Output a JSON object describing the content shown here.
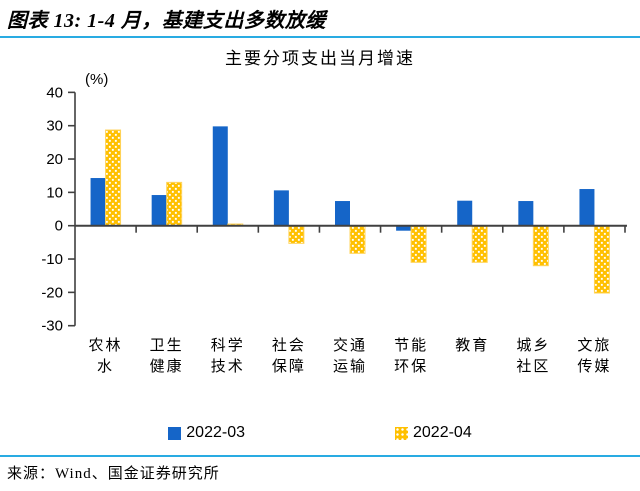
{
  "header": {
    "title": "图表 13: 1-4 月，基建支出多数放缓"
  },
  "chart_data": {
    "type": "bar",
    "title": "主要分项支出当月增速",
    "unit_label": "(%)",
    "categories": [
      "农林水",
      "卫生健康",
      "科学技术",
      "社会保障",
      "交通运输",
      "节能环保",
      "教育",
      "城乡社区",
      "文旅传媒"
    ],
    "category_label_lines": [
      [
        "农林",
        "水"
      ],
      [
        "卫生",
        "健康"
      ],
      [
        "科学",
        "技术"
      ],
      [
        "社会",
        "保障"
      ],
      [
        "交通",
        "运输"
      ],
      [
        "节能",
        "环保"
      ],
      [
        "教育"
      ],
      [
        "城乡",
        "社区"
      ],
      [
        "文旅",
        "传媒"
      ]
    ],
    "series": [
      {
        "name": "2022-03",
        "color": "#1565C8",
        "pattern": "solid",
        "values": [
          14.3,
          9.2,
          29.8,
          10.6,
          7.4,
          -1.5,
          7.5,
          7.4,
          11.0
        ]
      },
      {
        "name": "2022-04",
        "color": "#FFC000",
        "pattern": "white-dots",
        "values": [
          28.7,
          13.0,
          0.5,
          -5.3,
          -8.3,
          -11.0,
          -11.0,
          -12.0,
          -20.2
        ]
      }
    ],
    "ylim": [
      -30,
      40
    ],
    "yticks": [
      40,
      30,
      20,
      10,
      0,
      -10,
      -20,
      -30
    ],
    "grid": false,
    "legend_position": "bottom"
  },
  "source": {
    "text": "来源：Wind、国金证券研究所"
  },
  "colors": {
    "separator": "#29ABE2",
    "axis": "#404040",
    "blue": "#1565C8",
    "yellow": "#FFC000"
  }
}
